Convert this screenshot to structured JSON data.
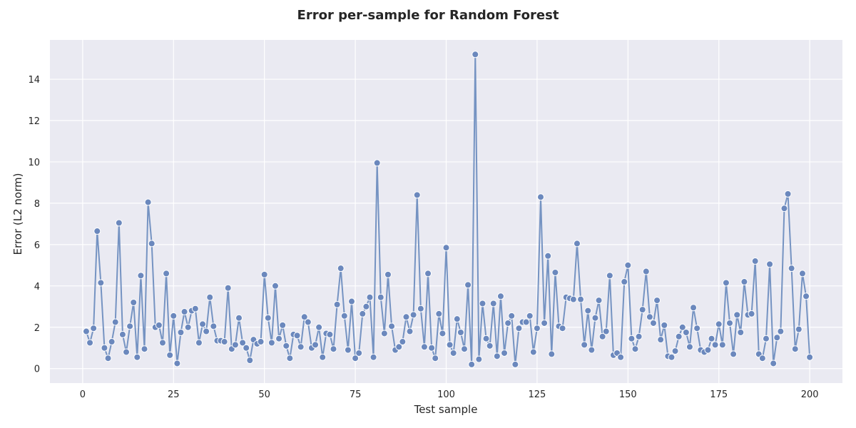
{
  "chart_data": {
    "type": "line",
    "title": "Error per-sample for Random Forest",
    "xlabel": "Test sample",
    "ylabel": "Error (L2 norm)",
    "xlim": [
      -9,
      209
    ],
    "ylim": [
      -0.7,
      15.9
    ],
    "xticks": [
      0,
      25,
      50,
      75,
      100,
      125,
      150,
      175,
      200
    ],
    "yticks": [
      0,
      2,
      4,
      6,
      8,
      10,
      12,
      14
    ],
    "grid": true,
    "background_color": "#eaeaf2",
    "line_color": "#7593c2",
    "marker_color": "#6b88bd",
    "series": [
      {
        "x": [
          1,
          2,
          3,
          4,
          5,
          6,
          7,
          8,
          9,
          10,
          11,
          12,
          13,
          14,
          15,
          16,
          17,
          18,
          19,
          20,
          21,
          22,
          23,
          24,
          25,
          26,
          27,
          28,
          29,
          30,
          31,
          32,
          33,
          34,
          35,
          36,
          37,
          38,
          39,
          40,
          41,
          42,
          43,
          44,
          45,
          46,
          47,
          48,
          49,
          50,
          51,
          52,
          53,
          54,
          55,
          56,
          57,
          58,
          59,
          60,
          61,
          62,
          63,
          64,
          65,
          66,
          67,
          68,
          69,
          70,
          71,
          72,
          73,
          74,
          75,
          76,
          77,
          78,
          79,
          80,
          81,
          82,
          83,
          84,
          85,
          86,
          87,
          88,
          89,
          90,
          91,
          92,
          93,
          94,
          95,
          96,
          97,
          98,
          99,
          100,
          101,
          102,
          103,
          104,
          105,
          106,
          107,
          108,
          109,
          110,
          111,
          112,
          113,
          114,
          115,
          116,
          117,
          118,
          119,
          120,
          121,
          122,
          123,
          124,
          125,
          126,
          127,
          128,
          129,
          130,
          131,
          132,
          133,
          134,
          135,
          136,
          137,
          138,
          139,
          140,
          141,
          142,
          143,
          144,
          145,
          146,
          147,
          148,
          149,
          150,
          151,
          152,
          153,
          154,
          155,
          156,
          157,
          158,
          159,
          160,
          161,
          162,
          163,
          164,
          165,
          166,
          167,
          168,
          169,
          170,
          171,
          172,
          173,
          174,
          175,
          176,
          177,
          178,
          179,
          180,
          181,
          182,
          183,
          184,
          185,
          186,
          187,
          188,
          189,
          190,
          191,
          192,
          193,
          194,
          195,
          196,
          197,
          198,
          199,
          200
        ],
        "values": [
          1.8,
          1.25,
          1.95,
          6.65,
          4.15,
          1.0,
          0.5,
          1.3,
          2.25,
          7.05,
          1.65,
          0.8,
          2.05,
          3.2,
          0.55,
          4.5,
          0.95,
          8.05,
          6.05,
          2.0,
          2.1,
          1.25,
          4.6,
          0.65,
          2.55,
          0.25,
          1.75,
          2.75,
          2.0,
          2.8,
          2.9,
          1.25,
          2.15,
          1.8,
          3.45,
          2.05,
          1.35,
          1.35,
          1.3,
          3.9,
          0.95,
          1.15,
          2.45,
          1.25,
          1.0,
          0.4,
          1.4,
          1.2,
          1.3,
          4.55,
          2.45,
          1.25,
          4.0,
          1.45,
          2.1,
          1.1,
          0.5,
          1.65,
          1.6,
          1.05,
          2.5,
          2.25,
          1.0,
          1.15,
          2.0,
          0.55,
          1.7,
          1.65,
          0.95,
          3.1,
          4.85,
          2.55,
          0.9,
          3.25,
          0.5,
          0.75,
          2.65,
          3.0,
          3.45,
          0.55,
          9.95,
          3.45,
          1.7,
          4.55,
          2.05,
          0.9,
          1.05,
          1.3,
          2.5,
          1.8,
          2.6,
          8.4,
          2.9,
          1.05,
          4.6,
          1.0,
          0.5,
          2.65,
          1.7,
          5.85,
          1.15,
          0.75,
          2.4,
          1.75,
          0.95,
          4.05,
          0.2,
          15.2,
          0.45,
          3.15,
          1.45,
          1.1,
          3.15,
          0.6,
          3.5,
          0.75,
          2.2,
          2.55,
          0.2,
          1.95,
          2.25,
          2.25,
          2.55,
          0.8,
          1.95,
          8.3,
          2.2,
          5.45,
          0.7,
          4.65,
          2.05,
          1.95,
          3.45,
          3.4,
          3.35,
          6.05,
          3.35,
          1.15,
          2.8,
          0.9,
          2.45,
          3.3,
          1.55,
          1.8,
          4.5,
          0.65,
          0.75,
          0.55,
          4.2,
          5.0,
          1.45,
          0.95,
          1.55,
          2.85,
          4.7,
          2.5,
          2.2,
          3.3,
          1.4,
          2.1,
          0.6,
          0.55,
          0.85,
          1.55,
          2.0,
          1.75,
          1.05,
          2.95,
          1.95,
          0.9,
          0.8,
          0.9,
          1.45,
          1.15,
          2.15,
          1.15,
          4.15,
          2.2,
          0.7,
          2.6,
          1.75,
          4.2,
          2.6,
          2.65,
          5.2,
          0.7,
          0.5,
          1.45,
          5.05,
          0.25,
          1.5,
          1.8,
          7.75,
          8.45,
          4.85,
          0.95,
          1.9,
          4.6,
          3.5,
          0.55
        ]
      }
    ]
  }
}
